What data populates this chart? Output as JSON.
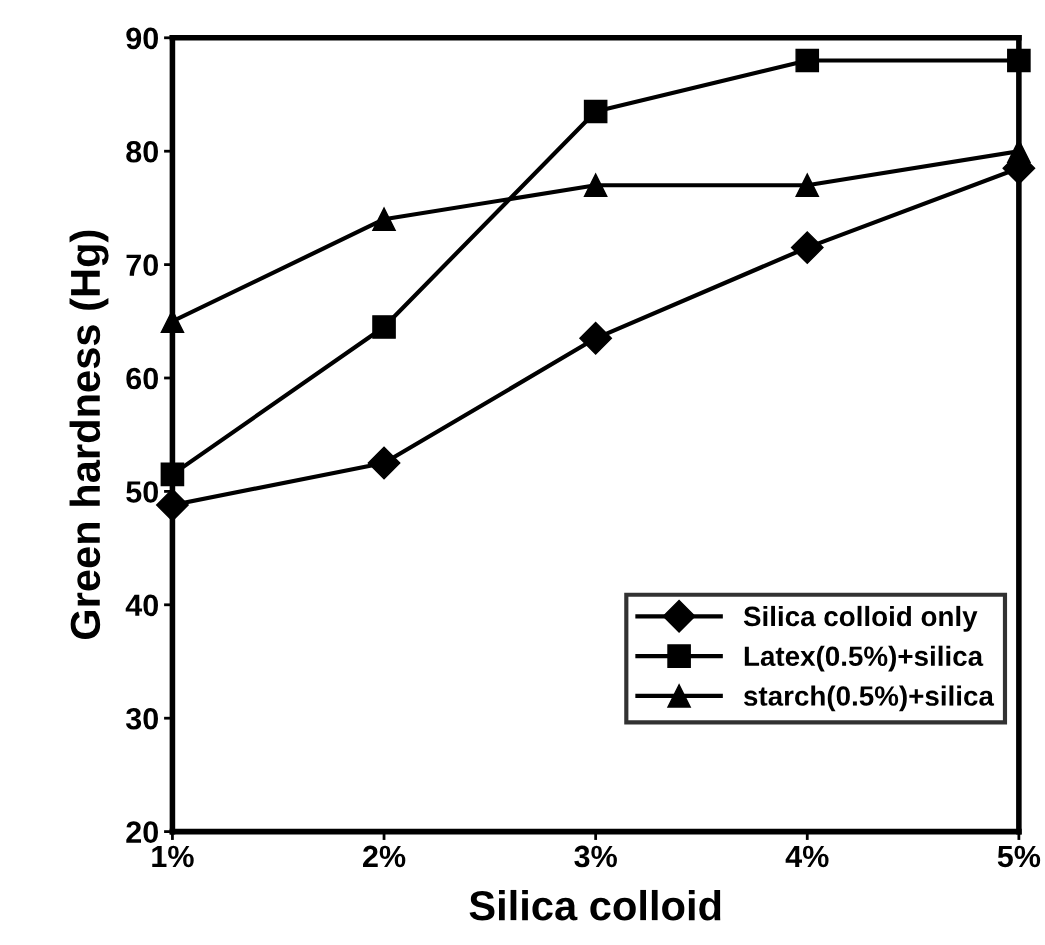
{
  "chart_data": {
    "type": "line",
    "xlabel": "Silica colloid",
    "ylabel": "Green hardness (Hg)",
    "categories": [
      "1%",
      "2%",
      "3%",
      "4%",
      "5%"
    ],
    "series": [
      {
        "name": "Silica colloid only",
        "color": "#000000",
        "marker": "diamond",
        "values": [
          48.8,
          52.5,
          63.5,
          71.5,
          78.5
        ]
      },
      {
        "name": "Latex(0.5%)+silica",
        "color": "#000000",
        "marker": "square",
        "values": [
          51.5,
          64.5,
          83.5,
          88,
          88
        ]
      },
      {
        "name": "starch(0.5%)+silica",
        "color": "#000000",
        "marker": "triangle",
        "values": [
          65,
          74,
          77,
          77,
          80
        ]
      }
    ],
    "ylim": [
      20,
      90
    ],
    "yticks": [
      20,
      30,
      40,
      50,
      60,
      70,
      80,
      90
    ],
    "grid": false,
    "legend": "bottom right",
    "line_style": "solid"
  }
}
